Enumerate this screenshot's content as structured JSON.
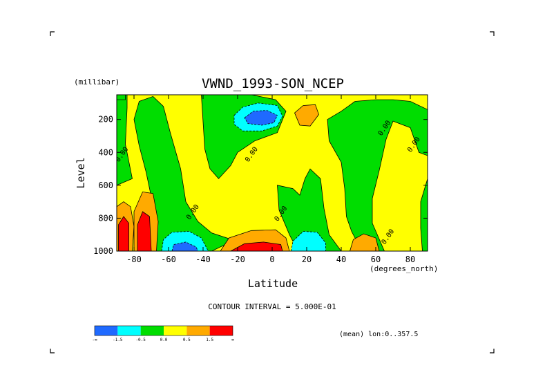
{
  "chart_data": {
    "type": "heatmap",
    "title": "VWND_1993-SON_NCEP",
    "xlabel": "Latitude",
    "ylabel": "Level",
    "x_units": "(degrees_north)",
    "y_units": "(millibar)",
    "xlim": [
      -90,
      90
    ],
    "ylim": [
      1000,
      50
    ],
    "y_inverted": true,
    "x_ticks": [
      -80,
      -60,
      -40,
      -20,
      0,
      20,
      40,
      60,
      80
    ],
    "y_ticks": [
      200,
      400,
      600,
      800,
      1000
    ],
    "contour_interval_text": "CONTOUR INTERVAL = 5.000E-01",
    "footnote": "(mean) lon:0..357.5",
    "contour_labels": [
      {
        "text": "0.00",
        "lat": -86,
        "lev": 420
      },
      {
        "text": "0.00",
        "lat": -45,
        "lev": 770
      },
      {
        "text": "0.00",
        "lat": -11,
        "lev": 420
      },
      {
        "text": "0.00",
        "lat": 6,
        "lev": 780
      },
      {
        "text": "0.00",
        "lat": 66,
        "lev": 260
      },
      {
        "text": "0.00",
        "lat": 83,
        "lev": 360
      },
      {
        "text": "0.00",
        "lat": 68,
        "lev": 920
      }
    ],
    "levels": [
      {
        "range": "< -1.5",
        "color": "#1f6aff"
      },
      {
        "range": "-1.5 to -0.5",
        "color": "#00ffff"
      },
      {
        "range": "-0.5 to 0.0",
        "color": "#00dd00"
      },
      {
        "range": "0.0 to 0.5",
        "color": "#ffff00"
      },
      {
        "range": "0.5 to 1.5",
        "color": "#ffaa00"
      },
      {
        "range": "> 1.5",
        "color": "#ff0000"
      }
    ],
    "colorbar_labels": [
      "-∞",
      "-1.5",
      "-0.5",
      "0.0",
      "0.5",
      "1.5",
      "∞"
    ],
    "regions": [
      {
        "name": "high-latitude-south-green",
        "level": "-0.5 to 0.0",
        "poly": [
          [
            -90,
            50
          ],
          [
            -84,
            50
          ],
          [
            -84,
            130
          ],
          [
            -85,
            350
          ],
          [
            -81,
            560
          ],
          [
            -90,
            600
          ]
        ]
      },
      {
        "name": "south-midlat-green",
        "level": "-0.5 to 0.0",
        "poly": [
          [
            -77,
            90
          ],
          [
            -69,
            60
          ],
          [
            -63,
            120
          ],
          [
            -59,
            280
          ],
          [
            -53,
            500
          ],
          [
            -50,
            700
          ],
          [
            -43,
            820
          ],
          [
            -35,
            890
          ],
          [
            -22,
            935
          ],
          [
            -35,
            1000
          ],
          [
            -68,
            1000
          ],
          [
            -72,
            910
          ],
          [
            -69,
            720
          ],
          [
            -73,
            520
          ],
          [
            -77,
            360
          ],
          [
            -80,
            200
          ]
        ]
      },
      {
        "name": "upper-central-green",
        "level": "-0.5 to 0.0",
        "poly": [
          [
            -41,
            50
          ],
          [
            -12,
            50
          ],
          [
            2,
            80
          ],
          [
            8,
            150
          ],
          [
            3,
            280
          ],
          [
            -10,
            330
          ],
          [
            -20,
            400
          ],
          [
            -24,
            480
          ],
          [
            -31,
            560
          ],
          [
            -36,
            500
          ],
          [
            -39,
            380
          ]
        ]
      },
      {
        "name": "central-green",
        "level": "-0.5 to 0.0",
        "poly": [
          [
            3,
            600
          ],
          [
            12,
            620
          ],
          [
            16,
            660
          ],
          [
            19,
            560
          ],
          [
            22,
            500
          ],
          [
            28,
            560
          ],
          [
            30,
            740
          ],
          [
            33,
            900
          ],
          [
            40,
            1000
          ],
          [
            15,
            1000
          ],
          [
            10,
            900
          ],
          [
            4,
            750
          ]
        ]
      },
      {
        "name": "northern-green",
        "level": "-0.5 to 0.0",
        "poly": [
          [
            32,
            200
          ],
          [
            40,
            150
          ],
          [
            48,
            90
          ],
          [
            60,
            80
          ],
          [
            70,
            80
          ],
          [
            80,
            90
          ],
          [
            90,
            140
          ],
          [
            90,
            420
          ],
          [
            85,
            400
          ],
          [
            80,
            250
          ],
          [
            70,
            210
          ],
          [
            66,
            320
          ],
          [
            62,
            510
          ],
          [
            58,
            680
          ],
          [
            58,
            830
          ],
          [
            65,
            1000
          ],
          [
            52,
            1000
          ],
          [
            46,
            880
          ],
          [
            43,
            790
          ],
          [
            42,
            620
          ],
          [
            40,
            460
          ],
          [
            33,
            330
          ]
        ]
      },
      {
        "name": "north-edge-green",
        "level": "-0.5 to 0.0",
        "poly": [
          [
            90,
            560
          ],
          [
            86,
            700
          ],
          [
            86,
            860
          ],
          [
            87,
            1000
          ],
          [
            90,
            1000
          ]
        ]
      },
      {
        "name": "top-left-corner-green",
        "level": "-0.5 to 0.0",
        "poly": [
          [
            -90,
            50
          ],
          [
            -90,
            80
          ],
          [
            -85,
            80
          ],
          [
            -85,
            50
          ]
        ]
      },
      {
        "name": "upper-negative-cyan",
        "level": "-1.5 to -0.5",
        "poly": [
          [
            -22,
            175
          ],
          [
            -17,
            125
          ],
          [
            -8,
            100
          ],
          [
            3,
            115
          ],
          [
            6,
            180
          ],
          [
            3,
            240
          ],
          [
            -6,
            270
          ],
          [
            -17,
            270
          ],
          [
            -22,
            230
          ]
        ]
      },
      {
        "name": "upper-negative-blue",
        "level": "< -1.5",
        "poly": [
          [
            -16,
            190
          ],
          [
            -11,
            150
          ],
          [
            -3,
            145
          ],
          [
            3,
            175
          ],
          [
            1,
            220
          ],
          [
            -6,
            235
          ],
          [
            -14,
            225
          ]
        ]
      },
      {
        "name": "upper-tropics-orange",
        "level": "0.5 to 1.5",
        "poly": [
          [
            13,
            160
          ],
          [
            18,
            115
          ],
          [
            25,
            110
          ],
          [
            27,
            170
          ],
          [
            22,
            240
          ],
          [
            16,
            235
          ]
        ]
      },
      {
        "name": "southern-surface-cyan",
        "level": "-1.5 to -0.5",
        "poly": [
          [
            -64,
            1000
          ],
          [
            -63,
            930
          ],
          [
            -58,
            885
          ],
          [
            -48,
            880
          ],
          [
            -41,
            920
          ],
          [
            -37,
            1000
          ]
        ]
      },
      {
        "name": "southern-surface-blue",
        "level": "< -1.5",
        "poly": [
          [
            -58,
            1000
          ],
          [
            -57,
            960
          ],
          [
            -50,
            945
          ],
          [
            -44,
            975
          ],
          [
            -43,
            1000
          ]
        ]
      },
      {
        "name": "equatorial-surface-cyan",
        "level": "-1.5 to -0.5",
        "poly": [
          [
            11,
            1000
          ],
          [
            12,
            940
          ],
          [
            18,
            880
          ],
          [
            26,
            885
          ],
          [
            31,
            950
          ],
          [
            31,
            1000
          ]
        ]
      },
      {
        "name": "southern-high-lat-orange-1",
        "level": "0.5 to 1.5",
        "poly": [
          [
            -90,
            1000
          ],
          [
            -90,
            730
          ],
          [
            -86,
            700
          ],
          [
            -82,
            730
          ],
          [
            -80,
            850
          ],
          [
            -81,
            1000
          ]
        ]
      },
      {
        "name": "southern-high-lat-orange-2",
        "level": "0.5 to 1.5",
        "poly": [
          [
            -80,
            1000
          ],
          [
            -80,
            760
          ],
          [
            -75,
            640
          ],
          [
            -69,
            650
          ],
          [
            -66,
            820
          ],
          [
            -67,
            1000
          ]
        ]
      },
      {
        "name": "southern-high-lat-red-1",
        "level": "> 1.5",
        "poly": [
          [
            -89,
            1000
          ],
          [
            -89,
            840
          ],
          [
            -86,
            790
          ],
          [
            -83,
            830
          ],
          [
            -83,
            1000
          ]
        ]
      },
      {
        "name": "southern-high-lat-red-2",
        "level": "> 1.5",
        "poly": [
          [
            -78,
            1000
          ],
          [
            -78,
            840
          ],
          [
            -75,
            760
          ],
          [
            -71,
            790
          ],
          [
            -70,
            1000
          ]
        ]
      },
      {
        "name": "equatorial-surface-orange",
        "level": "0.5 to 1.5",
        "poly": [
          [
            -30,
            1000
          ],
          [
            -25,
            920
          ],
          [
            -12,
            875
          ],
          [
            2,
            870
          ],
          [
            8,
            920
          ],
          [
            10,
            1000
          ]
        ]
      },
      {
        "name": "equatorial-surface-red",
        "level": "> 1.5",
        "poly": [
          [
            -24,
            1000
          ],
          [
            -16,
            955
          ],
          [
            -5,
            945
          ],
          [
            5,
            960
          ],
          [
            6,
            1000
          ]
        ]
      },
      {
        "name": "northern-surface-orange",
        "level": "0.5 to 1.5",
        "poly": [
          [
            45,
            1000
          ],
          [
            47,
            930
          ],
          [
            53,
            895
          ],
          [
            60,
            920
          ],
          [
            62,
            1000
          ]
        ]
      }
    ]
  }
}
